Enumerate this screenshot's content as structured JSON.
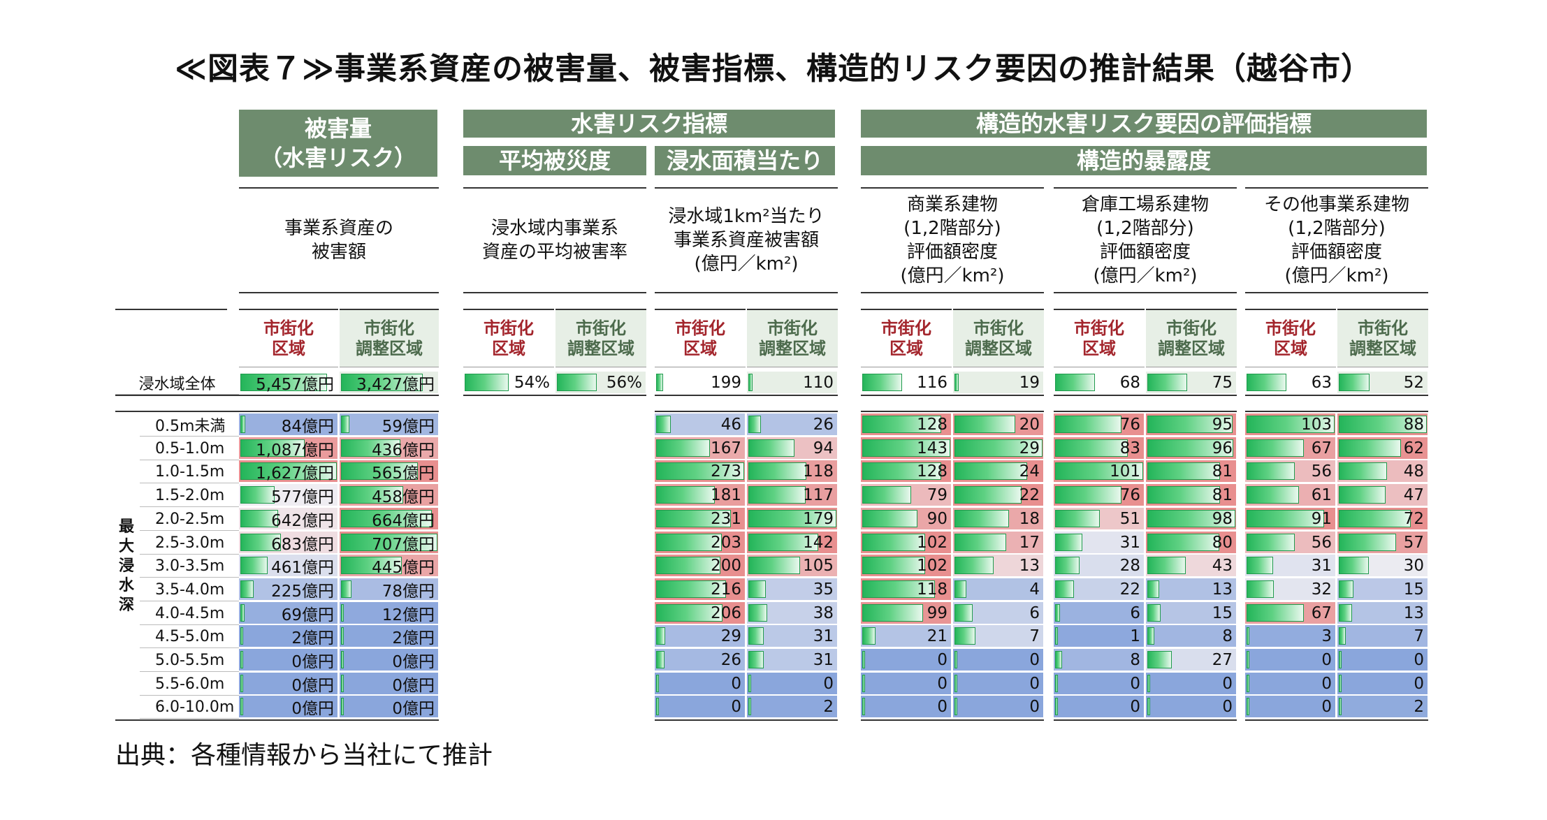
{
  "title": "≪図表７≫事業系資産の被害量、被害指標、構造的リスク要因の推計結果（越谷市）",
  "source": "出典：各種情報から当社にて推計",
  "headers": {
    "damage": "被害量\n（水害リスク）",
    "risk": "水害リスク指標",
    "avg": "平均被災度",
    "area": "浸水面積当たり",
    "struct": "構造的水害リスク要因の評価指標",
    "exposure": "構造的暴露度"
  },
  "col_desc": [
    "事業系資産の\n被害額",
    "浸水域内事業系\n資産の平均被害率",
    "浸水域1km²当たり\n事業系資産被害額\n(億円／km²)",
    "商業系建物\n(1,2階部分)\n評価額密度\n(億円／km²)",
    "倉庫工場系建物\n(1,2階部分)\n評価額密度\n(億円／km²)",
    "その他事業系建物\n(1,2階部分)\n評価額密度\n(億円／km²)"
  ],
  "sub_labels": {
    "urban": "市街化\n区域",
    "adjust": "市街化\n調整区域"
  },
  "row_group_label": "最\n大\n浸\n水\n深",
  "total_label": "浸水域全体",
  "total_values": [
    "5,457億円",
    "3,427億円",
    "54%",
    "56%",
    "199",
    "110",
    "116",
    "19",
    "68",
    "75",
    "63",
    "52"
  ],
  "total_fill": [
    0.9,
    0.85,
    0.5,
    0.45,
    0.08,
    0.05,
    0.45,
    0.05,
    0.45,
    0.45,
    0.45,
    0.35
  ],
  "depth_rows": [
    {
      "label": "0.5m未満",
      "values": [
        "84億円",
        "59億円",
        "46",
        "26",
        "128",
        "20",
        "76",
        "95",
        "103",
        "88"
      ]
    },
    {
      "label": "0.5-1.0m",
      "values": [
        "1,087億円",
        "436億円",
        "167",
        "94",
        "143",
        "29",
        "83",
        "96",
        "67",
        "62"
      ]
    },
    {
      "label": "1.0-1.5m",
      "values": [
        "1,627億円",
        "565億円",
        "273",
        "118",
        "128",
        "24",
        "101",
        "81",
        "56",
        "48"
      ]
    },
    {
      "label": "1.5-2.0m",
      "values": [
        "577億円",
        "458億円",
        "181",
        "117",
        "79",
        "22",
        "76",
        "81",
        "61",
        "47"
      ]
    },
    {
      "label": "2.0-2.5m",
      "values": [
        "642億円",
        "664億円",
        "231",
        "179",
        "90",
        "18",
        "51",
        "98",
        "91",
        "72"
      ]
    },
    {
      "label": "2.5-3.0m",
      "values": [
        "683億円",
        "707億円",
        "203",
        "142",
        "102",
        "17",
        "31",
        "80",
        "56",
        "57"
      ]
    },
    {
      "label": "3.0-3.5m",
      "values": [
        "461億円",
        "445億円",
        "200",
        "105",
        "102",
        "13",
        "28",
        "43",
        "31",
        "30"
      ]
    },
    {
      "label": "3.5-4.0m",
      "values": [
        "225億円",
        "78億円",
        "216",
        "35",
        "118",
        "4",
        "22",
        "13",
        "32",
        "15"
      ]
    },
    {
      "label": "4.0-4.5m",
      "values": [
        "69億円",
        "12億円",
        "206",
        "38",
        "99",
        "6",
        "6",
        "15",
        "67",
        "13"
      ]
    },
    {
      "label": "4.5-5.0m",
      "values": [
        "2億円",
        "2億円",
        "29",
        "31",
        "21",
        "7",
        "1",
        "8",
        "3",
        "7"
      ]
    },
    {
      "label": "5.0-5.5m",
      "values": [
        "0億円",
        "0億円",
        "26",
        "31",
        "0",
        "0",
        "8",
        "27",
        "0",
        "0"
      ]
    },
    {
      "label": "5.5-6.0m",
      "values": [
        "0億円",
        "0億円",
        "0",
        "0",
        "0",
        "0",
        "0",
        "0",
        "0",
        "0"
      ]
    },
    {
      "label": "6.0-10.0m",
      "values": [
        "0億円",
        "0億円",
        "0",
        "2",
        "0",
        "0",
        "0",
        "0",
        "0",
        "2"
      ]
    }
  ],
  "colors": {
    "header_green": "#6e8c6e",
    "bar_green": "#24b55a",
    "red_high": "#e88f8f",
    "blue_low": "#8aa6dc",
    "urban_text": "#a3252c"
  }
}
